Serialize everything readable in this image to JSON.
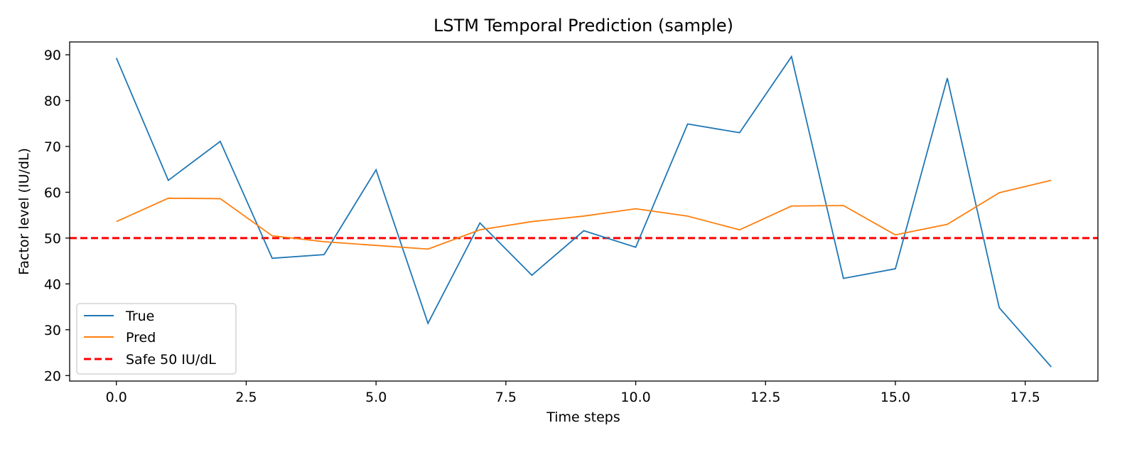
{
  "chart_data": {
    "type": "line",
    "title": "LSTM Temporal Prediction (sample)",
    "xlabel": "Time steps",
    "ylabel": "Factor level (IU/dL)",
    "xlim": [
      -0.9,
      18.9
    ],
    "ylim": [
      18.8,
      92.8
    ],
    "xticks": [
      0.0,
      2.5,
      5.0,
      7.5,
      10.0,
      12.5,
      15.0,
      17.5
    ],
    "xtick_labels": [
      "0.0",
      "2.5",
      "5.0",
      "7.5",
      "10.0",
      "12.5",
      "15.0",
      "17.5"
    ],
    "yticks": [
      20,
      30,
      40,
      50,
      60,
      70,
      80,
      90
    ],
    "ytick_labels": [
      "20",
      "30",
      "40",
      "50",
      "60",
      "70",
      "80",
      "90"
    ],
    "grid": false,
    "legend_position": "lower-left",
    "x": [
      0,
      1,
      2,
      3,
      4,
      5,
      6,
      7,
      8,
      9,
      10,
      11,
      12,
      13,
      14,
      15,
      16,
      17,
      18
    ],
    "series": [
      {
        "name": "True",
        "color": "#1f77b4",
        "style": "solid",
        "values": [
          89.3,
          62.6,
          71.1,
          45.6,
          46.4,
          64.9,
          31.4,
          53.3,
          41.9,
          51.6,
          48.0,
          74.9,
          73.0,
          89.6,
          41.2,
          43.3,
          84.9,
          34.8,
          21.9
        ]
      },
      {
        "name": "Pred",
        "color": "#ff7f0e",
        "style": "solid",
        "values": [
          53.6,
          58.7,
          58.6,
          50.5,
          49.2,
          48.4,
          47.6,
          51.8,
          53.6,
          54.8,
          56.4,
          54.8,
          51.8,
          57.0,
          57.1,
          50.7,
          53.0,
          59.9,
          62.6
        ]
      }
    ],
    "reference_lines": [
      {
        "name": "Safe 50 IU/dL",
        "y": 50,
        "color": "#ff0000",
        "style": "dashed"
      }
    ]
  }
}
